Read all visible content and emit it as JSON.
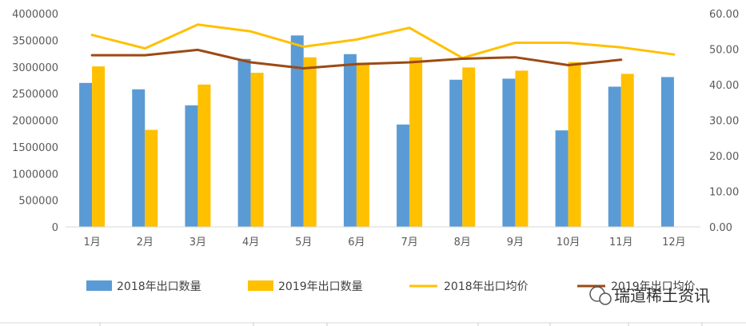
{
  "chart_data": {
    "type": "bar",
    "categories": [
      "1月",
      "2月",
      "3月",
      "4月",
      "5月",
      "6月",
      "7月",
      "8月",
      "9月",
      "10月",
      "11月",
      "12月"
    ],
    "series": [
      {
        "name": "2018年出口数量",
        "kind": "bar",
        "axis": "left",
        "color": "#5B9BD5",
        "values": [
          2700000,
          2580000,
          2280000,
          3150000,
          3590000,
          3240000,
          1920000,
          2760000,
          2780000,
          1810000,
          2630000,
          2810000
        ]
      },
      {
        "name": "2019年出口数量",
        "kind": "bar",
        "axis": "left",
        "color": "#FFC000",
        "values": [
          3010000,
          1820000,
          2670000,
          2890000,
          3180000,
          3080000,
          3180000,
          2990000,
          2930000,
          3090000,
          2870000,
          null
        ]
      },
      {
        "name": "2018年出口均价",
        "kind": "line",
        "axis": "right",
        "color": "#FFC000",
        "values": [
          54.0,
          50.2,
          56.9,
          55.0,
          50.7,
          52.7,
          56.0,
          47.5,
          51.8,
          51.8,
          50.5,
          48.5
        ]
      },
      {
        "name": "2019年出口均价",
        "kind": "line",
        "axis": "right",
        "color": "#9C4A14",
        "values": [
          48.3,
          48.3,
          49.8,
          46.3,
          44.6,
          45.8,
          46.3,
          47.3,
          47.7,
          45.5,
          47.0,
          null
        ]
      }
    ],
    "y_left": {
      "min": 0,
      "max": 4000000,
      "ticks": [
        "0",
        "500000",
        "1000000",
        "1500000",
        "2000000",
        "2500000",
        "3000000",
        "3500000",
        "4000000"
      ]
    },
    "y_right": {
      "min": 0,
      "max": 60,
      "ticks": [
        "0.00",
        "10.00",
        "20.00",
        "30.00",
        "40.00",
        "50.00",
        "60.00"
      ]
    },
    "grid": false,
    "legend_position": "bottom"
  },
  "watermark": "瑞道稀土资讯",
  "colors": {
    "axis": "#d9d9d9",
    "tick_text": "#595959"
  }
}
